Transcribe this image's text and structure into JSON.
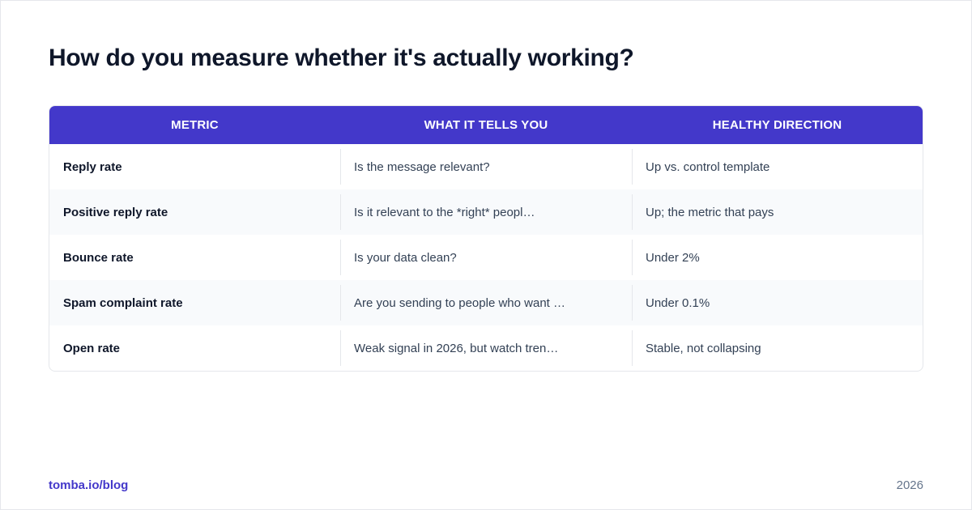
{
  "title": "How do you measure whether it's actually working?",
  "colors": {
    "accent": "#4338ca",
    "header_text": "#ffffff",
    "row_alt": "#f8fafc",
    "text_dark": "#0f172a",
    "text_muted": "#334155"
  },
  "table": {
    "headers": [
      "METRIC",
      "WHAT IT TELLS YOU",
      "HEALTHY DIRECTION"
    ],
    "rows": [
      [
        "Reply rate",
        "Is the message relevant?",
        "Up vs. control template"
      ],
      [
        "Positive reply rate",
        "Is it relevant to the *right* peopl…",
        "Up; the metric that pays"
      ],
      [
        "Bounce rate",
        "Is your data clean?",
        "Under 2%"
      ],
      [
        "Spam complaint rate",
        "Are you sending to people who want …",
        "Under 0.1%"
      ],
      [
        "Open rate",
        "Weak signal in 2026, but watch tren…",
        "Stable, not collapsing"
      ]
    ]
  },
  "footer": {
    "link": "tomba.io/blog",
    "year": "2026"
  }
}
